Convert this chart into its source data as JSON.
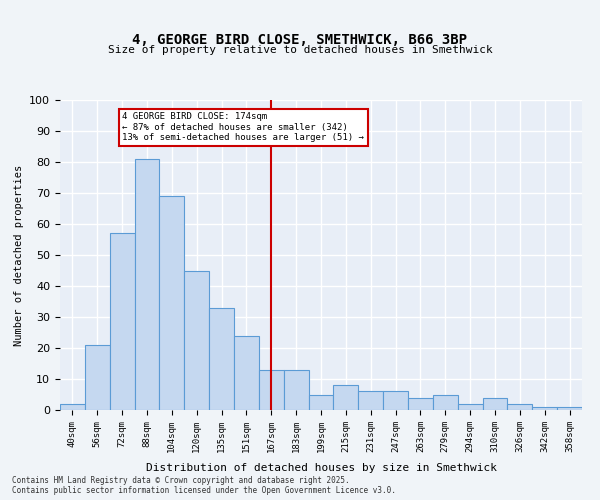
{
  "title_line1": "4, GEORGE BIRD CLOSE, SMETHWICK, B66 3BP",
  "title_line2": "Size of property relative to detached houses in Smethwick",
  "xlabel": "Distribution of detached houses by size in Smethwick",
  "ylabel": "Number of detached properties",
  "bar_labels": [
    "40sqm",
    "56sqm",
    "72sqm",
    "88sqm",
    "104sqm",
    "120sqm",
    "135sqm",
    "151sqm",
    "167sqm",
    "183sqm",
    "199sqm",
    "215sqm",
    "231sqm",
    "247sqm",
    "263sqm",
    "279sqm",
    "294sqm",
    "310sqm",
    "326sqm",
    "342sqm",
    "358sqm"
  ],
  "bar_values": [
    2,
    21,
    57,
    81,
    69,
    45,
    33,
    24,
    13,
    13,
    5,
    8,
    6,
    6,
    4,
    5,
    2,
    4,
    2,
    1,
    1
  ],
  "bar_color": "#c5d8f0",
  "bar_edge_color": "#5b9bd5",
  "background_color": "#e8eef7",
  "grid_color": "#ffffff",
  "property_size": 174,
  "property_label": "4 GEORGE BIRD CLOSE: 174sqm",
  "pct_smaller": 87,
  "n_smaller": 342,
  "pct_larger_semi": 13,
  "n_larger_semi": 51,
  "vline_bin_index": 8,
  "vline_color": "#cc0000",
  "annotation_box_color": "#cc0000",
  "ylim": [
    0,
    100
  ],
  "yticks": [
    0,
    10,
    20,
    30,
    40,
    50,
    60,
    70,
    80,
    90,
    100
  ],
  "footer_line1": "Contains HM Land Registry data © Crown copyright and database right 2025.",
  "footer_line2": "Contains public sector information licensed under the Open Government Licence v3.0."
}
